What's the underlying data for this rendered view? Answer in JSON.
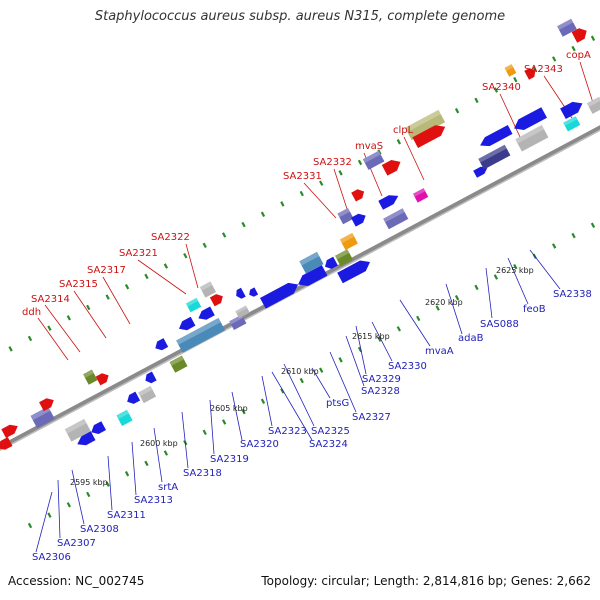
{
  "title": "Staphylococcus aureus subsp. aureus N315, complete genome",
  "footer": {
    "accession": "Accession: NC_002745",
    "topology": "Topology: circular; Length: 2,814,816 bp; Genes: 2,662"
  },
  "colors": {
    "backbone": "#8a8a8a",
    "gene_label": "#2222bb",
    "red_label": "#cc1111",
    "tick": "#2a8a2a",
    "blue": "#1a1ae0",
    "red": "#e01010",
    "slate": "#6a6ab8",
    "navy": "#3c3c8c",
    "olive": "#6a8a2a",
    "khaki": "#b8b878",
    "gray": "#b4b4b4",
    "cyan": "#18d8d8",
    "steel": "#4a8ab8",
    "orange": "#f09a10",
    "magenta": "#e010b0"
  },
  "axis_labels": [
    "2595 kbp",
    "2600 kbp",
    "2605 kbp",
    "2610 kbp",
    "2615 kbp",
    "2620 kbp",
    "2625 kbp"
  ],
  "forward_labels": [
    "ddh",
    "SA2314",
    "SA2315",
    "SA2317",
    "SA2321",
    "SA2322",
    "SA2331",
    "SA2332",
    "mvaS",
    "clpL",
    "SA2340",
    "SA2343",
    "copA"
  ],
  "reverse_labels": [
    "SA2306",
    "SA2307",
    "SA2308",
    "SA2311",
    "SA2313",
    "srtA",
    "SA2318",
    "SA2319",
    "SA2320",
    "SA2323",
    "SA2324",
    "SA2325",
    "ptsG",
    "SA2327",
    "SA2328",
    "SA2329",
    "SA2330",
    "mvaA",
    "adaB",
    "SAS088",
    "feoB",
    "SA2338"
  ]
}
